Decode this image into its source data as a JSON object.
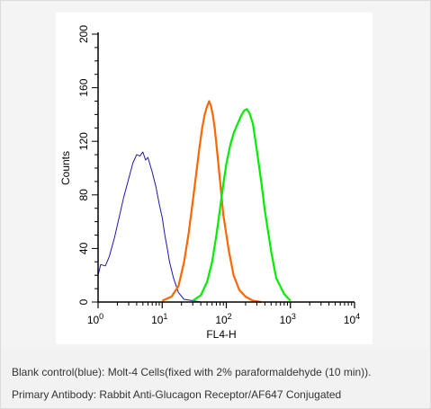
{
  "chart_data": {
    "type": "line",
    "xlabel": "FL4-H",
    "ylabel": "Counts",
    "xscale": "log",
    "xlim": [
      1,
      10000
    ],
    "ylim": [
      0,
      200
    ],
    "x_tick_labels": [
      {
        "base": "10",
        "exp": "0"
      },
      {
        "base": "10",
        "exp": "1"
      },
      {
        "base": "10",
        "exp": "2"
      },
      {
        "base": "10",
        "exp": "3"
      },
      {
        "base": "10",
        "exp": "4"
      }
    ],
    "x_ticks": [
      1,
      10,
      100,
      1000,
      10000
    ],
    "y_ticks": [
      0,
      40,
      80,
      120,
      160,
      200
    ],
    "y_tick_labels": [
      "0",
      "40",
      "80",
      "120",
      "160",
      "200"
    ],
    "series": [
      {
        "color": "#1a1aa8",
        "x": [
          1.0,
          1.1,
          1.3,
          1.5,
          1.8,
          2.1,
          2.5,
          3.0,
          3.5,
          4.0,
          4.5,
          5.0,
          5.5,
          6.0,
          7.0,
          8.0,
          9.0,
          10.0,
          11.0,
          12.0,
          13.0,
          15.0,
          18.0,
          22.0,
          30.0,
          40.0,
          60.0,
          100.0
        ],
        "y": [
          20,
          28,
          27,
          34,
          48,
          62,
          78,
          92,
          104,
          110,
          109,
          112,
          106,
          108,
          97,
          86,
          73,
          63,
          50,
          40,
          30,
          18,
          7,
          2,
          1,
          0,
          0,
          0
        ]
      },
      {
        "color": "#ff6600",
        "x": [
          10,
          14,
          18,
          22,
          26,
          30,
          34,
          38,
          42,
          46,
          50,
          54,
          58,
          62,
          66,
          70,
          80,
          90,
          110,
          130,
          160,
          200,
          260,
          350
        ],
        "y": [
          1,
          4,
          12,
          30,
          52,
          75,
          96,
          115,
          130,
          140,
          146,
          150,
          146,
          139,
          130,
          118,
          90,
          65,
          38,
          20,
          9,
          4,
          1,
          0
        ]
      },
      {
        "color": "#00ee00",
        "x": [
          30,
          40,
          50,
          60,
          70,
          80,
          90,
          100,
          115,
          130,
          150,
          170,
          190,
          210,
          230,
          260,
          300,
          350,
          400,
          500,
          600,
          800,
          1000
        ],
        "y": [
          1,
          5,
          15,
          30,
          50,
          70,
          88,
          103,
          117,
          126,
          133,
          139,
          143,
          144,
          141,
          133,
          113,
          90,
          68,
          38,
          18,
          6,
          1
        ]
      }
    ],
    "grid": false,
    "legend": "none"
  },
  "caption": {
    "line1": "Blank control(blue): Molt-4 Cells(fixed with 2% paraformaldehyde (10 min)).",
    "line2": "Primary Antibody: Rabbit Anti-Glucagon Receptor/AF647 Conjugated"
  }
}
